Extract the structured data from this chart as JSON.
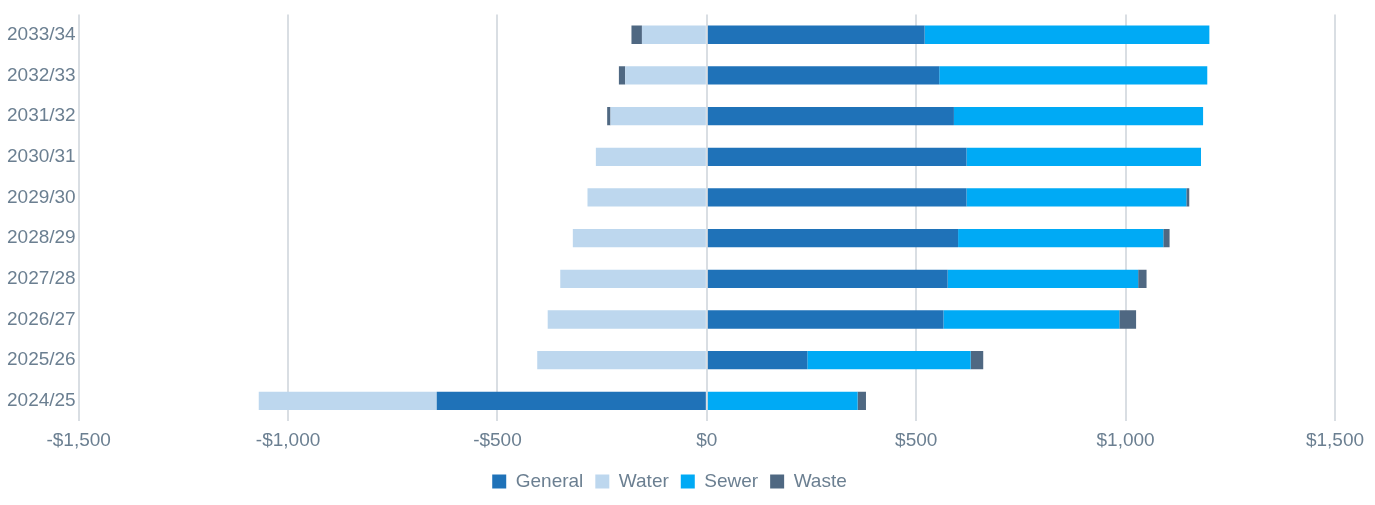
{
  "chart_data": {
    "type": "bar",
    "orientation": "horizontal",
    "stacked": true,
    "categories": [
      "2033/34",
      "2032/33",
      "2031/32",
      "2030/31",
      "2029/30",
      "2028/29",
      "2027/28",
      "2026/27",
      "2025/26",
      "2024/25"
    ],
    "series": [
      {
        "name": "General",
        "color": "#1f72b8",
        "values": [
          520,
          555,
          590,
          620,
          620,
          600,
          575,
          565,
          240,
          -645
        ]
      },
      {
        "name": "Water",
        "color": "#bdd7ee",
        "values": [
          -155,
          -195,
          -230,
          -265,
          -285,
          -320,
          -350,
          -380,
          -405,
          -425
        ]
      },
      {
        "name": "Sewer",
        "color": "#00aaf5",
        "values": [
          680,
          640,
          595,
          560,
          525,
          490,
          455,
          420,
          390,
          360
        ]
      },
      {
        "name": "Waste",
        "color": "#4f6882",
        "values": [
          -25,
          -15,
          -8,
          0,
          7,
          15,
          20,
          40,
          30,
          20
        ]
      }
    ],
    "xlim": [
      -1500,
      1500
    ],
    "xticks": [
      {
        "value": -1500,
        "label": "-$1,500"
      },
      {
        "value": -1000,
        "label": "-$1,000"
      },
      {
        "value": -500,
        "label": "-$500"
      },
      {
        "value": 0,
        "label": "$0"
      },
      {
        "value": 500,
        "label": "$500"
      },
      {
        "value": 1000,
        "label": "$1,000"
      },
      {
        "value": 1500,
        "label": "$1,500"
      }
    ],
    "grid": "x",
    "legend": "bottom"
  }
}
